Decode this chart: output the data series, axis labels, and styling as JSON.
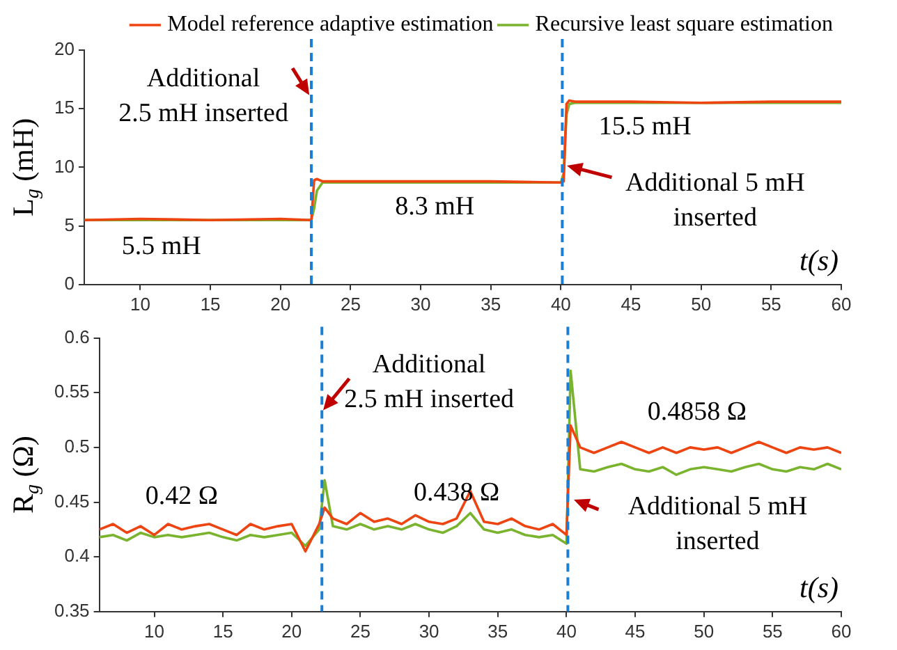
{
  "chart_data": [
    {
      "type": "line",
      "ylabel": "L$_{g}$ (mH)",
      "xlabel": "t(s)",
      "legend": "top right",
      "grid": false,
      "line_style": "solid",
      "marker": "none",
      "xlim": [
        6,
        60
      ],
      "xticks": [
        10,
        15,
        20,
        25,
        30,
        35,
        40,
        45,
        50,
        55,
        60
      ],
      "ylim": [
        0,
        20
      ],
      "yticks": [
        0,
        5,
        10,
        15,
        20
      ],
      "series": [
        {
          "name": "Model reference adaptive estimation",
          "color": "#ee4411",
          "x": [
            6,
            10,
            15,
            20,
            22.2,
            22.4,
            22.6,
            23,
            25,
            30,
            35,
            40,
            40.2,
            40.4,
            40.6,
            41,
            45,
            50,
            55,
            60
          ],
          "values": [
            5.5,
            5.6,
            5.5,
            5.6,
            5.5,
            8.9,
            9.0,
            8.8,
            8.8,
            8.8,
            8.8,
            8.7,
            8.8,
            15.4,
            15.7,
            15.6,
            15.6,
            15.5,
            15.6,
            15.6
          ]
        },
        {
          "name": "Recursive least square estimation",
          "color": "#7ab32e",
          "x": [
            6,
            10,
            15,
            20,
            22.2,
            22.4,
            22.6,
            23,
            25,
            30,
            35,
            40,
            40.2,
            40.4,
            40.6,
            41,
            45,
            50,
            55,
            60
          ],
          "values": [
            5.5,
            5.5,
            5.5,
            5.5,
            5.5,
            6.5,
            8.0,
            8.7,
            8.7,
            8.7,
            8.7,
            8.7,
            9.5,
            14.5,
            15.4,
            15.5,
            15.5,
            15.5,
            15.5,
            15.5
          ]
        }
      ],
      "ref_lines": [
        {
          "axis": "x",
          "value": 22.2,
          "color": "#1a7fd4",
          "line_style": "dashed"
        },
        {
          "axis": "x",
          "value": 40.1,
          "color": "#1a7fd4",
          "line_style": "dashed"
        }
      ],
      "annotations": [
        "Additional\n2.5 mH inserted",
        "5.5 mH",
        "8.3 mH",
        "15.5 mH",
        "Additional 5 mH\ninserted"
      ]
    },
    {
      "type": "line",
      "ylabel": "R$_{g}$ (Ω)",
      "xlabel": "t(s)",
      "grid": false,
      "line_style": "solid",
      "marker": "none",
      "xlim": [
        6,
        60
      ],
      "xticks": [
        10,
        15,
        20,
        25,
        30,
        35,
        40,
        45,
        50,
        55,
        60
      ],
      "ylim": [
        0.35,
        0.6
      ],
      "yticks": [
        0.35,
        0.4,
        0.45,
        0.5,
        0.55,
        0.6
      ],
      "series": [
        {
          "color": "#ee4411",
          "x": [
            6,
            7,
            8,
            9,
            10,
            11,
            12,
            13,
            14,
            15,
            16,
            17,
            18,
            19,
            20,
            21,
            22,
            22.4,
            23,
            24,
            25,
            26,
            27,
            28,
            29,
            30,
            31,
            32,
            33,
            34,
            35,
            36,
            37,
            38,
            39,
            40,
            40.3,
            41,
            42,
            43,
            44,
            45,
            46,
            47,
            48,
            49,
            50,
            51,
            52,
            53,
            54,
            55,
            56,
            57,
            58,
            59,
            60
          ],
          "values": [
            0.425,
            0.43,
            0.422,
            0.428,
            0.42,
            0.43,
            0.425,
            0.428,
            0.43,
            0.425,
            0.42,
            0.43,
            0.425,
            0.428,
            0.43,
            0.405,
            0.43,
            0.445,
            0.435,
            0.43,
            0.44,
            0.432,
            0.435,
            0.43,
            0.438,
            0.432,
            0.43,
            0.435,
            0.46,
            0.432,
            0.43,
            0.435,
            0.428,
            0.425,
            0.43,
            0.42,
            0.52,
            0.5,
            0.495,
            0.5,
            0.505,
            0.5,
            0.495,
            0.5,
            0.495,
            0.5,
            0.498,
            0.5,
            0.495,
            0.5,
            0.505,
            0.5,
            0.495,
            0.5,
            0.498,
            0.5,
            0.495
          ]
        },
        {
          "color": "#7ab32e",
          "x": [
            6,
            7,
            8,
            9,
            10,
            11,
            12,
            13,
            14,
            15,
            16,
            17,
            18,
            19,
            20,
            21,
            22,
            22.4,
            23,
            24,
            25,
            26,
            27,
            28,
            29,
            30,
            31,
            32,
            33,
            34,
            35,
            36,
            37,
            38,
            39,
            40,
            40.3,
            41,
            42,
            43,
            44,
            45,
            46,
            47,
            48,
            49,
            50,
            51,
            52,
            53,
            54,
            55,
            56,
            57,
            58,
            59,
            60
          ],
          "values": [
            0.418,
            0.42,
            0.415,
            0.422,
            0.418,
            0.42,
            0.418,
            0.42,
            0.422,
            0.418,
            0.415,
            0.42,
            0.418,
            0.42,
            0.422,
            0.41,
            0.425,
            0.47,
            0.428,
            0.425,
            0.43,
            0.425,
            0.428,
            0.425,
            0.43,
            0.425,
            0.422,
            0.428,
            0.44,
            0.425,
            0.422,
            0.425,
            0.42,
            0.418,
            0.42,
            0.412,
            0.57,
            0.48,
            0.478,
            0.482,
            0.485,
            0.48,
            0.478,
            0.482,
            0.475,
            0.48,
            0.482,
            0.48,
            0.478,
            0.482,
            0.485,
            0.48,
            0.478,
            0.482,
            0.48,
            0.485,
            0.48
          ]
        }
      ],
      "ref_lines": [
        {
          "axis": "x",
          "value": 22.2,
          "color": "#1a7fd4",
          "line_style": "dashed"
        },
        {
          "axis": "x",
          "value": 40.1,
          "color": "#1a7fd4",
          "line_style": "dashed"
        }
      ],
      "annotations": [
        "Additional\n2.5 mH inserted",
        "0.42 Ω",
        "0.438 Ω",
        "0.4858 Ω",
        "Additional 5 mH\ninserted"
      ]
    }
  ]
}
